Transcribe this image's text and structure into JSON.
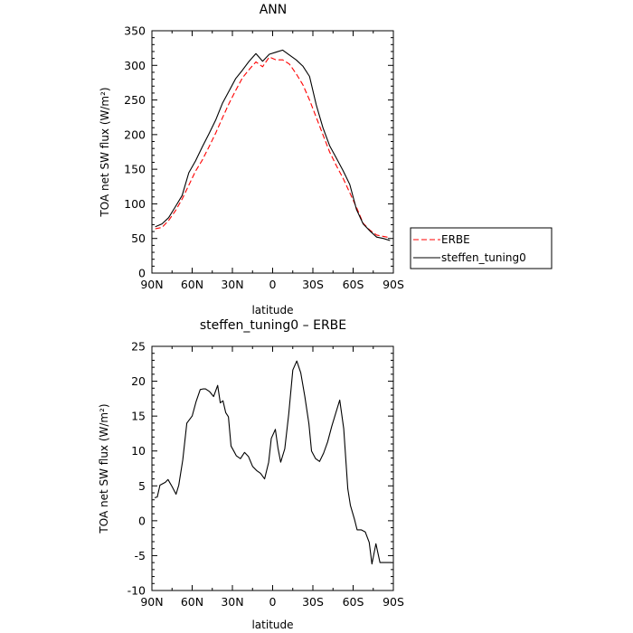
{
  "chart_data": [
    {
      "type": "line",
      "title": "ANN",
      "xlabel": "latitude",
      "ylabel": "TOA net SW flux (W/m²)",
      "xlim": [
        -90,
        90
      ],
      "ylim": [
        0,
        350
      ],
      "x_ticks": [
        -90,
        -60,
        -30,
        0,
        30,
        60,
        90
      ],
      "x_tick_labels": [
        "90N",
        "60N",
        "30N",
        "0",
        "30S",
        "60S",
        "90S"
      ],
      "y_ticks": [
        0,
        50,
        100,
        150,
        200,
        250,
        300,
        350
      ],
      "legend": {
        "placement": "right",
        "entries": [
          "ERBE",
          "steffen_tuning0"
        ]
      },
      "series": [
        {
          "name": "ERBE",
          "color": "#ff0000",
          "style": "dashed",
          "x": [
            -87.5,
            -82.5,
            -77.5,
            -72.5,
            -67.5,
            -62.5,
            -57.5,
            -52.5,
            -47.5,
            -42.5,
            -37.5,
            -32.5,
            -27.5,
            -22.5,
            -17.5,
            -12.5,
            -7.5,
            -2.5,
            2.5,
            7.5,
            12.5,
            17.5,
            22.5,
            27.5,
            32.5,
            37.5,
            42.5,
            47.5,
            52.5,
            57.5,
            62.5,
            67.5,
            72.5,
            77.5,
            82.5,
            87.5
          ],
          "y": [
            64,
            66,
            76,
            90,
            107,
            127,
            147,
            163,
            182,
            202,
            224,
            245,
            264,
            282,
            294,
            305,
            298,
            312,
            308,
            308,
            302,
            288,
            272,
            250,
            225,
            200,
            175,
            155,
            137,
            116,
            95,
            72,
            62,
            55,
            53,
            51
          ]
        },
        {
          "name": "steffen_tuning0",
          "color": "#000000",
          "style": "solid",
          "x": [
            -87.5,
            -82.5,
            -77.5,
            -72.5,
            -67.5,
            -62.5,
            -57.5,
            -52.5,
            -47.5,
            -42.5,
            -37.5,
            -32.5,
            -27.5,
            -22.5,
            -17.5,
            -12.5,
            -7.5,
            -2.5,
            2.5,
            7.5,
            12.5,
            17.5,
            22.5,
            27.5,
            32.5,
            37.5,
            42.5,
            47.5,
            52.5,
            57.5,
            62.5,
            67.5,
            72.5,
            77.5,
            82.5,
            87.5
          ],
          "y": [
            67,
            71,
            80,
            96,
            112,
            145,
            162,
            182,
            201,
            221,
            245,
            263,
            281,
            293,
            306,
            317,
            306,
            316,
            319,
            322,
            315,
            308,
            299,
            284,
            243,
            210,
            184,
            166,
            148,
            128,
            92,
            71,
            61,
            52,
            50,
            47
          ]
        }
      ]
    },
    {
      "type": "line",
      "title": "steffen_tuning0 – ERBE",
      "xlabel": "latitude",
      "ylabel": "TOA net SW flux (W/m²)",
      "xlim": [
        -90,
        90
      ],
      "ylim": [
        -10,
        25
      ],
      "x_ticks": [
        -90,
        -60,
        -30,
        0,
        30,
        60,
        90
      ],
      "x_tick_labels": [
        "90N",
        "60N",
        "30N",
        "0",
        "30S",
        "60S",
        "90S"
      ],
      "y_ticks": [
        -10,
        -5,
        0,
        5,
        10,
        15,
        20,
        25
      ],
      "series": [
        {
          "color": "#000000",
          "style": "solid",
          "x": [
            -88,
            -86,
            -84,
            -80,
            -78,
            -75,
            -72,
            -70,
            -67,
            -64,
            -60,
            -57,
            -54,
            -52,
            -50,
            -47,
            -44,
            -41,
            -39,
            -37,
            -35,
            -33,
            -31,
            -29,
            -27,
            -24,
            -21,
            -18,
            -15,
            -12,
            -9,
            -6,
            -3,
            -1,
            2,
            4,
            6,
            9,
            12,
            15,
            18,
            21,
            24,
            27,
            29,
            32,
            35,
            38,
            41,
            44,
            47,
            50,
            53,
            56,
            58,
            61,
            63,
            66,
            69,
            72,
            74,
            77,
            80,
            82,
            85,
            87,
            89
          ],
          "y": [
            3.3,
            3.4,
            5.1,
            5.5,
            5.9,
            4.9,
            3.8,
            5.1,
            8.7,
            14.0,
            15.0,
            17.1,
            18.8,
            18.9,
            18.9,
            18.5,
            17.8,
            19.4,
            16.9,
            17.2,
            15.5,
            14.9,
            10.7,
            10.0,
            9.3,
            8.9,
            9.8,
            9.2,
            7.8,
            7.2,
            6.8,
            6.0,
            8.4,
            11.8,
            13.1,
            10.4,
            8.4,
            10.3,
            15.3,
            21.6,
            22.9,
            21.2,
            17.8,
            13.9,
            10.0,
            8.9,
            8.5,
            9.7,
            11.3,
            13.5,
            15.4,
            17.3,
            13.2,
            4.6,
            2.2,
            0.2,
            -1.3,
            -1.3,
            -1.6,
            -3.1,
            -6.2,
            -3.3,
            -6.0,
            -6.0,
            -6.0,
            -6.0,
            -6.0
          ]
        }
      ]
    }
  ]
}
